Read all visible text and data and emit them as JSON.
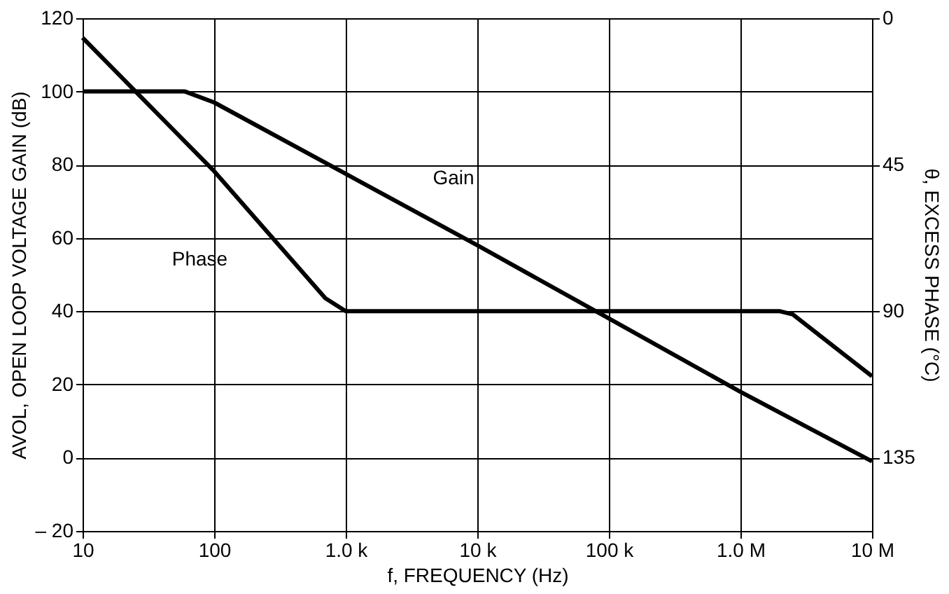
{
  "chart_data": {
    "type": "line",
    "xlabel": "f, FREQUENCY (Hz)",
    "ylabel": "AVOL, OPEN LOOP VOLTAGE GAIN (dB)",
    "y2label": "θ, EXCESS PHASE  (°C)",
    "log": "x",
    "grid": true,
    "marker": "none",
    "line_style": "solid",
    "xlim": [
      10,
      10000000
    ],
    "xticks": [
      10,
      100,
      {
        "value": 1000,
        "label": "1.0 k"
      },
      {
        "value": 10000,
        "label": "10 k"
      },
      {
        "value": 100000,
        "label": "100 k"
      },
      {
        "value": 1000000,
        "label": "1.0 M"
      },
      {
        "value": 10000000,
        "label": "10 M"
      }
    ],
    "ylim": [
      -20,
      120
    ],
    "yticks": [
      {
        "value": -20,
        "label": "– 20"
      },
      0,
      20,
      40,
      60,
      80,
      100,
      120
    ],
    "y2lim": [
      157.5,
      0
    ],
    "y2ticks": [
      0,
      45,
      90,
      135
    ],
    "series": [
      {
        "name": "Gain",
        "color": "#000000",
        "x": [
          10,
          60,
          100,
          1000,
          10000,
          100000,
          1000000,
          10000000
        ],
        "values": [
          100,
          100,
          97,
          77.5,
          58,
          38,
          18,
          -1
        ]
      },
      {
        "name": "Phase",
        "color": "#000000",
        "axis": "y2",
        "x": [
          10,
          100,
          700,
          1000,
          2000000,
          2500000,
          10000000
        ],
        "values": [
          6,
          47,
          86,
          90,
          90,
          91,
          110
        ]
      }
    ]
  }
}
